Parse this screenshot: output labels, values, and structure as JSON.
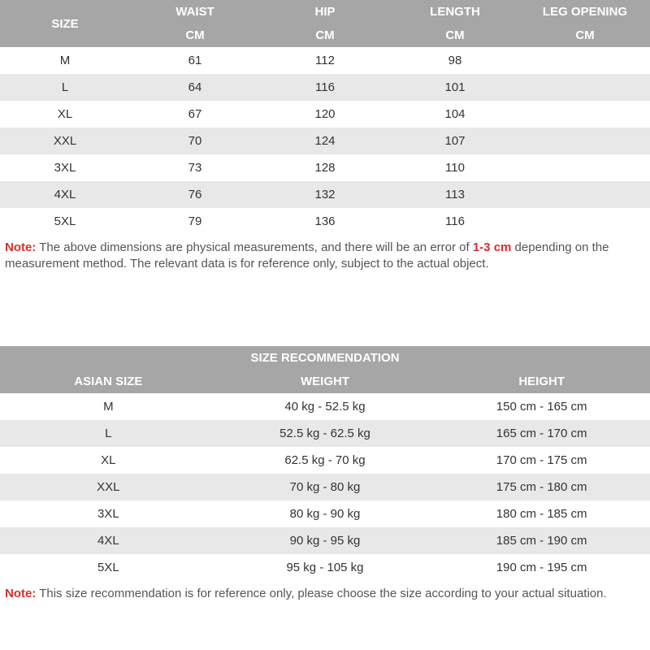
{
  "table1": {
    "columns": [
      {
        "top": "SIZE",
        "bottom": ""
      },
      {
        "top": "WAIST",
        "bottom": "CM"
      },
      {
        "top": "HIP",
        "bottom": "CM"
      },
      {
        "top": "LENGTH",
        "bottom": "CM"
      },
      {
        "top": "LEG OPENING",
        "bottom": "CM"
      }
    ],
    "rows": [
      [
        "M",
        "61",
        "112",
        "98",
        ""
      ],
      [
        "L",
        "64",
        "116",
        "101",
        ""
      ],
      [
        "XL",
        "67",
        "120",
        "104",
        ""
      ],
      [
        "XXL",
        "70",
        "124",
        "107",
        ""
      ],
      [
        "3XL",
        "73",
        "128",
        "110",
        ""
      ],
      [
        "4XL",
        "76",
        "132",
        "113",
        ""
      ],
      [
        "5XL",
        "79",
        "136",
        "116",
        ""
      ]
    ],
    "note": {
      "label": "Note:",
      "pre": " The above dimensions are physical measurements, and there will be an error of ",
      "highlight": "1-3 cm",
      "post": " depending on the measurement method. The relevant data is for reference only, subject to the actual object."
    }
  },
  "table2": {
    "title": "SIZE RECOMMENDATION",
    "columns": [
      "ASIAN SIZE",
      "WEIGHT",
      "HEIGHT"
    ],
    "rows": [
      [
        "M",
        "40 kg - 52.5 kg",
        "150 cm - 165 cm"
      ],
      [
        "L",
        "52.5 kg - 62.5 kg",
        "165 cm - 170 cm"
      ],
      [
        "XL",
        "62.5 kg - 70 kg",
        "170 cm - 175 cm"
      ],
      [
        "XXL",
        "70 kg - 80 kg",
        "175 cm - 180 cm"
      ],
      [
        "3XL",
        "80 kg - 90 kg",
        "180 cm - 185 cm"
      ],
      [
        "4XL",
        "90 kg - 95 kg",
        "185 cm - 190 cm"
      ],
      [
        "5XL",
        "95 kg - 105 kg",
        "190 cm - 195 cm"
      ]
    ],
    "note": {
      "label": "Note:",
      "text": " This size recommendation is for reference only, please choose the size according to your actual situation."
    }
  },
  "colors": {
    "header_bg": "#a6a6a6",
    "header_text": "#ffffff",
    "row_even_bg": "#e8e8e8",
    "row_odd_bg": "#ffffff",
    "cell_text": "#333333",
    "note_text": "#555555",
    "note_red": "#d62e2e"
  }
}
